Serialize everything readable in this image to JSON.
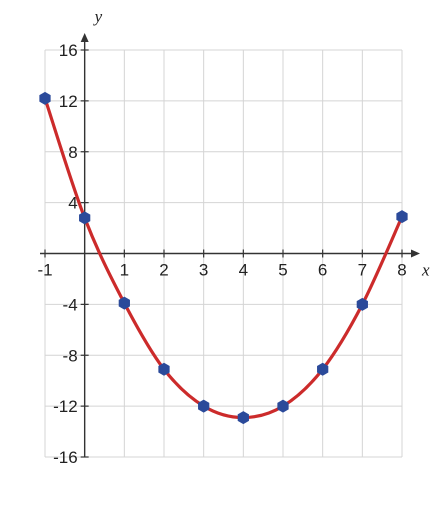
{
  "chart_data": {
    "type": "line",
    "title": "",
    "xlabel": "x",
    "ylabel": "y",
    "xlim": [
      -1,
      8
    ],
    "ylim": [
      -16,
      16
    ],
    "grid": true,
    "x_ticks": [
      -1,
      1,
      2,
      3,
      4,
      5,
      6,
      7,
      8
    ],
    "y_ticks": [
      16,
      12,
      8,
      4,
      -4,
      -8,
      -12,
      -16
    ],
    "x_tick_labels": [
      "-1",
      "1",
      "2",
      "3",
      "4",
      "5",
      "6",
      "7",
      "8"
    ],
    "y_tick_labels": [
      "16",
      "12",
      "8",
      "4",
      "-4",
      "-8",
      "-12",
      "-16"
    ],
    "series": [
      {
        "x": [
          -1,
          0,
          1,
          2,
          3,
          4,
          5,
          6,
          7,
          8
        ],
        "y": [
          12.2,
          2.8,
          -3.9,
          -9.1,
          -12,
          -12.9,
          -12,
          -9.1,
          -4,
          2.9
        ]
      }
    ],
    "colors": {
      "curve": "#cc2b2b",
      "points": "#2b4a9a",
      "grid": "#d4d4d4",
      "axis": "#333333"
    }
  }
}
